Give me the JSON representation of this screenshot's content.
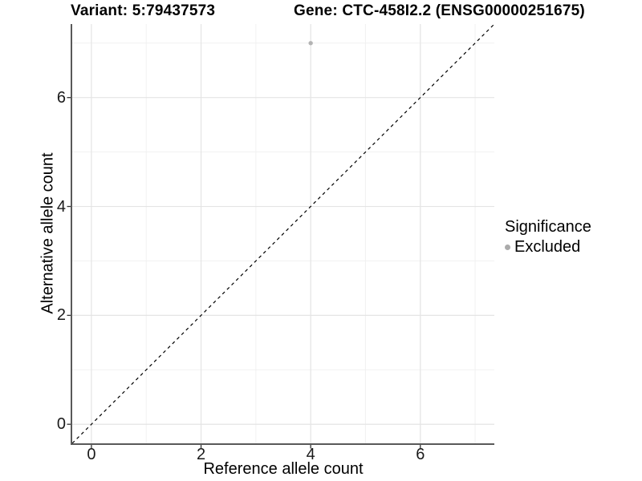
{
  "chart_data": {
    "type": "scatter",
    "title_left": "Variant: 5:79437573",
    "title_right": "Gene: CTC-458I2.2 (ENSG00000251675)",
    "xlabel": "Reference allele count",
    "ylabel": "Alternative allele count",
    "xlim": [
      -0.35,
      7.35
    ],
    "ylim": [
      -0.35,
      7.35
    ],
    "x_ticks": [
      0,
      2,
      4,
      6
    ],
    "y_ticks": [
      0,
      2,
      4,
      6
    ],
    "x_minor": [
      1,
      3,
      5,
      7
    ],
    "y_minor": [
      1,
      3,
      5,
      7
    ],
    "grid": "major+minor",
    "legend_position": "right",
    "reference_line": {
      "style": "dashed",
      "color": "#000000",
      "x1": -0.35,
      "y1": -0.35,
      "x2": 7.35,
      "y2": 7.35,
      "meaning": "identity y=x"
    },
    "series": [
      {
        "name": "Excluded",
        "color": "#b3b3b3",
        "points": [
          {
            "x": 4,
            "y": 7
          }
        ]
      }
    ],
    "legend": {
      "title": "Significance",
      "entries": [
        {
          "label": "Excluded",
          "color": "#ababab"
        }
      ]
    },
    "colors": {
      "grid_major": "#e4e4e4",
      "grid_minor": "#f1f1f1",
      "axis_line": "#595959",
      "tick": "#333333",
      "text": "#000000",
      "background": "#ffffff"
    }
  }
}
